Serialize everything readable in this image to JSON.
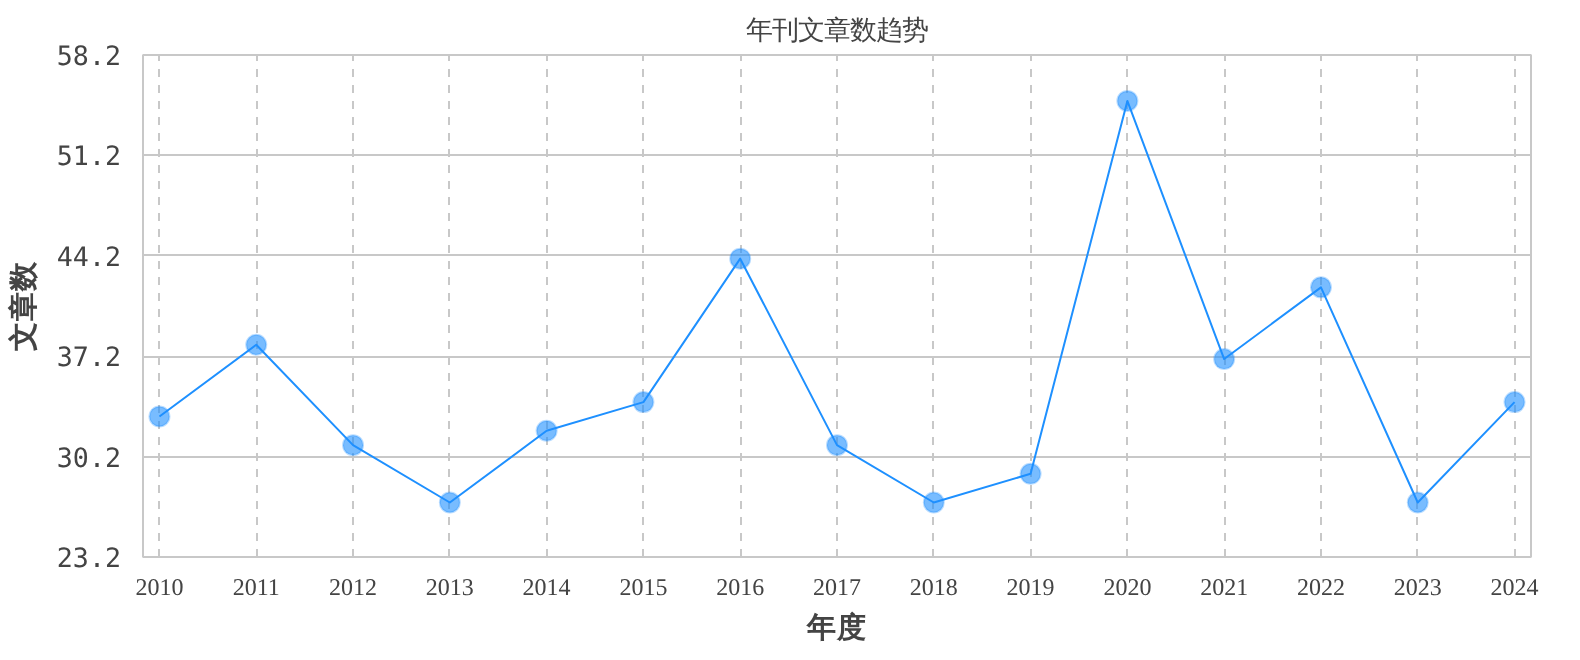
{
  "chart_data": {
    "type": "line",
    "title": "年刊文章数趋势",
    "xlabel": "年度",
    "ylabel": "文章数",
    "categories": [
      "2010",
      "2011",
      "2012",
      "2013",
      "2014",
      "2015",
      "2016",
      "2017",
      "2018",
      "2019",
      "2020",
      "2021",
      "2022",
      "2023",
      "2024"
    ],
    "series": [
      {
        "color": "#1e90ff",
        "values": [
          33,
          38,
          31,
          27,
          32,
          34,
          44,
          31,
          27,
          29,
          55,
          37,
          42,
          27,
          34
        ]
      }
    ],
    "ylim": [
      23.2,
      58.2
    ],
    "yticks": [
      23.2,
      30.2,
      37.2,
      44.2,
      51.2,
      58.2
    ],
    "grid": true,
    "marker": "circle",
    "line_style": "solid"
  }
}
